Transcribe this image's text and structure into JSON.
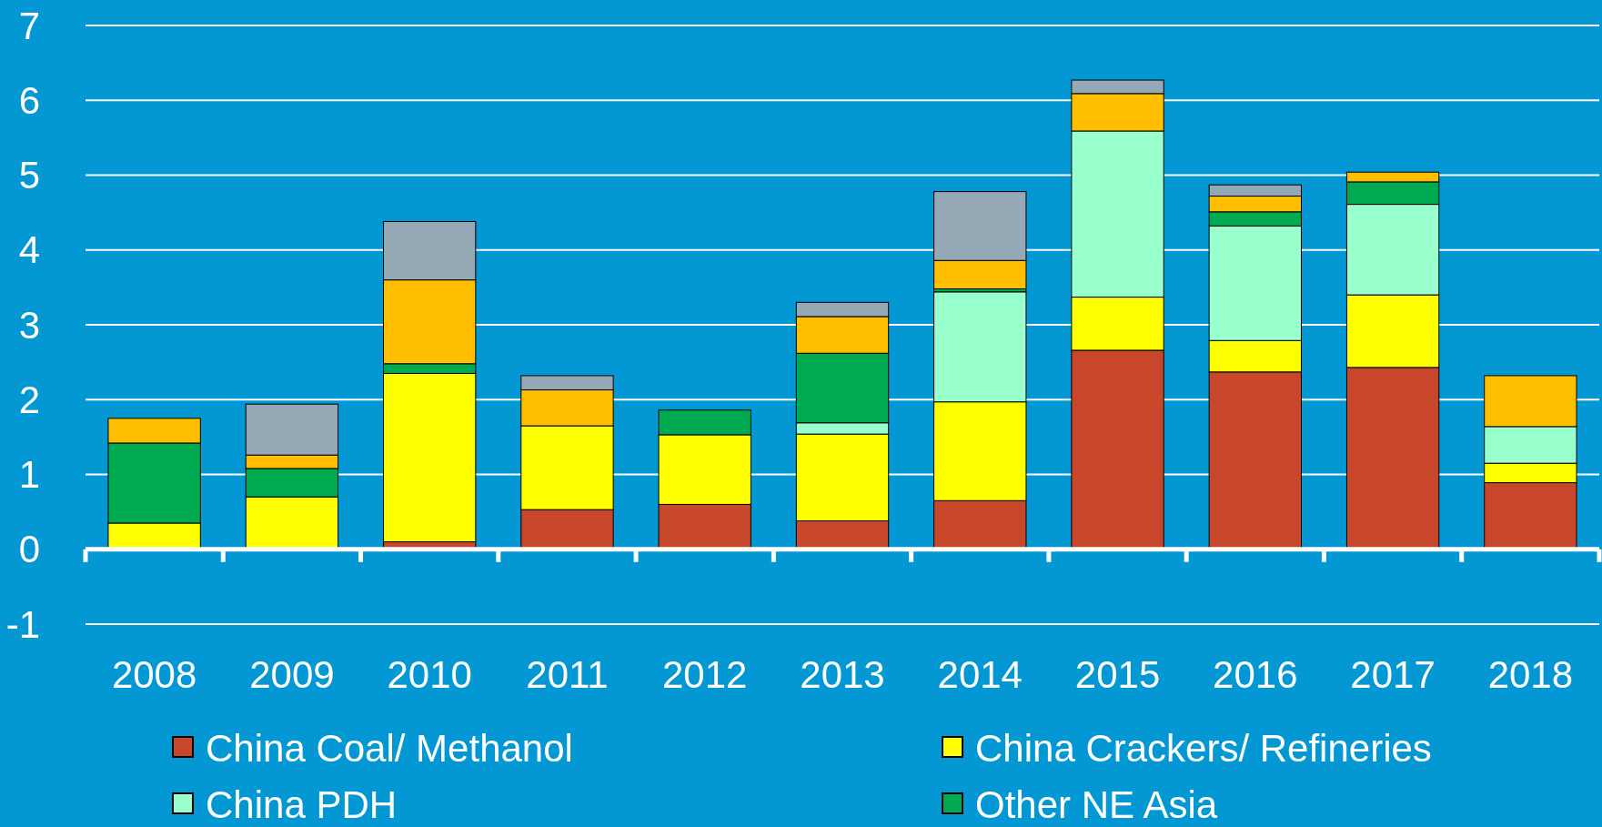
{
  "chart_data": {
    "type": "bar",
    "stacked": true,
    "categories": [
      "2008",
      "2009",
      "2010",
      "2011",
      "2012",
      "2013",
      "2014",
      "2015",
      "2016",
      "2017",
      "2018"
    ],
    "series": [
      {
        "name": "China Coal/ Methanol",
        "color": "#c8472a",
        "values": [
          0,
          0,
          0.1,
          0.53,
          0.6,
          0.38,
          0.65,
          2.66,
          2.37,
          2.43,
          0.89
        ]
      },
      {
        "name": "China Crackers/ Refineries",
        "color": "#ffff00",
        "values": [
          0.35,
          0.7,
          2.25,
          1.12,
          0.93,
          1.16,
          1.32,
          0.71,
          0.42,
          0.97,
          0.26
        ]
      },
      {
        "name": "China PDH",
        "color": "#99ffcc",
        "values": [
          0,
          0,
          0,
          0,
          0,
          0.15,
          1.47,
          2.22,
          1.53,
          1.21,
          0.49
        ]
      },
      {
        "name": "Other NE Asia",
        "color": "#00aa50",
        "values": [
          1.07,
          0.38,
          0.13,
          0,
          0.33,
          0.93,
          0.04,
          0,
          0.19,
          0.3,
          0
        ]
      },
      {
        "color": "#ffbf00",
        "values": [
          0.33,
          0.18,
          1.12,
          0.48,
          0,
          0.49,
          0.38,
          0.5,
          0.21,
          0.13,
          0.68
        ]
      },
      {
        "color": "#94a9b5",
        "values": [
          0,
          0.68,
          0.78,
          0.19,
          0,
          0.19,
          0.92,
          0.18,
          0.15,
          0,
          0
        ]
      }
    ],
    "ylim": [
      -1,
      7
    ],
    "yticks": [
      -1,
      0,
      1,
      2,
      3,
      4,
      5,
      6,
      7
    ],
    "grid": "y",
    "legend": "bottom"
  }
}
